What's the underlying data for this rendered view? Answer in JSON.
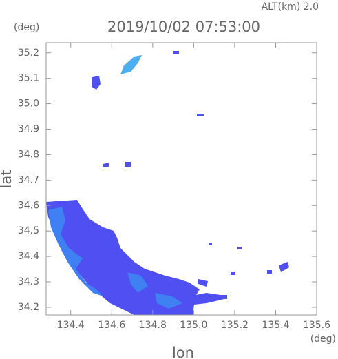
{
  "chart_data": {
    "type": "map",
    "title": "2019/10/02 07:53:00",
    "subtitle": "ALT(km) 2.0",
    "x_label": "lon",
    "x_unit": "(deg)",
    "y_label": "lat",
    "y_unit": "(deg)",
    "xlim": [
      134.28,
      135.6
    ],
    "ylim": [
      34.17,
      35.24
    ],
    "xticks": [
      134.4,
      134.6,
      134.8,
      {
        "value": 135.0,
        "label": "135.0"
      },
      135.2,
      135.4,
      135.6
    ],
    "yticks": [
      34.2,
      34.3,
      34.4,
      34.5,
      34.6,
      34.7,
      34.8,
      34.9,
      {
        "value": 35.0,
        "label": "35.0"
      },
      35.1,
      35.2
    ]
  }
}
